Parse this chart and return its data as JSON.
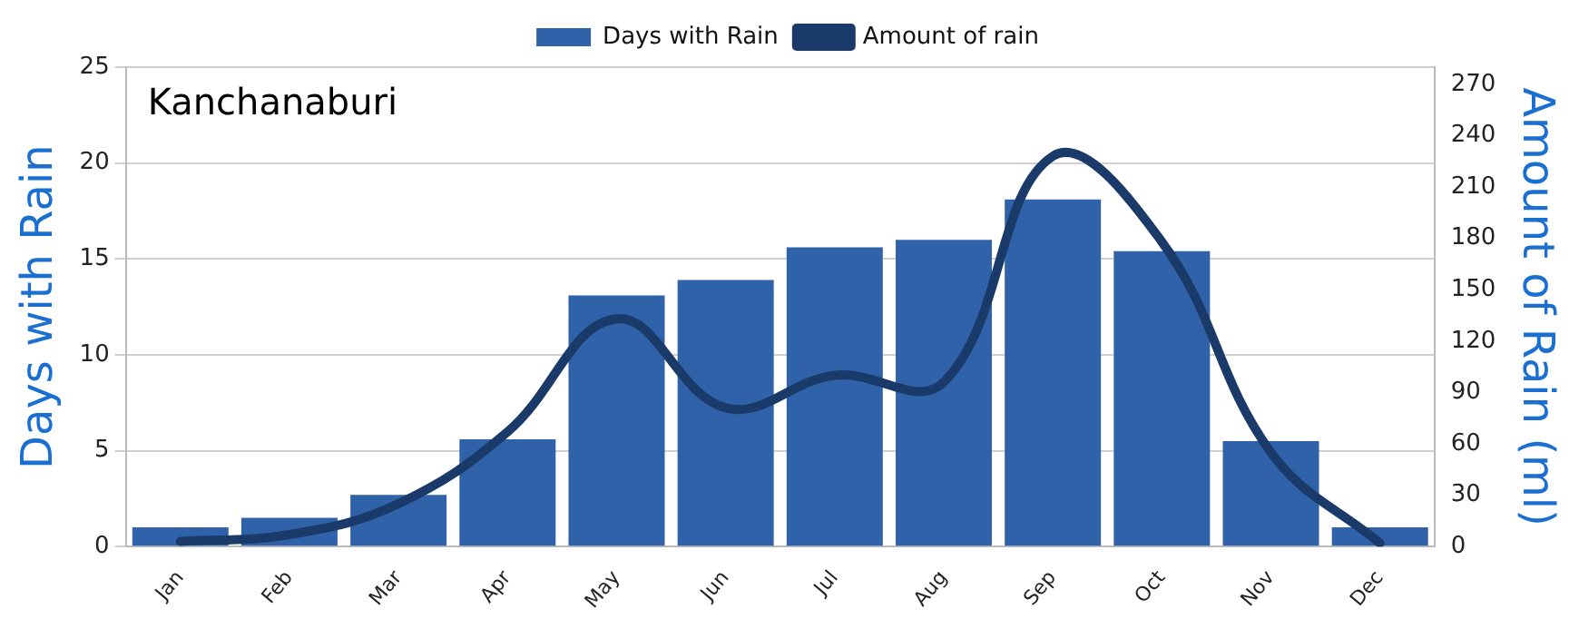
{
  "chart_data": {
    "type": "bar",
    "title": "Kanchanaburi",
    "categories": [
      "Jan",
      "Feb",
      "Mar",
      "Apr",
      "May",
      "Jun",
      "Jul",
      "Aug",
      "Sep",
      "Oct",
      "Nov",
      "Dec"
    ],
    "series": [
      {
        "name": "Days with Rain",
        "color": "#2f62a8",
        "values": [
          1,
          1.5,
          2.7,
          5.6,
          13.1,
          13.9,
          15.6,
          16,
          18.1,
          15.4,
          5.5,
          1
        ]
      },
      {
        "name": "Amount of rain",
        "type": "line",
        "axis": "y2",
        "color": "#1a3a6a",
        "values": [
          3,
          7,
          25,
          67,
          133,
          81,
          100,
          96,
          228,
          178,
          55,
          2
        ]
      }
    ],
    "ylabel": "Days with Rain",
    "y2label": "Amount of Rain (ml)",
    "ylim": [
      0,
      25
    ],
    "yticks": [
      0,
      5,
      10,
      15,
      20,
      25
    ],
    "y2lim": [
      0,
      280
    ],
    "y2ticks": [
      0,
      30,
      60,
      90,
      120,
      150,
      180,
      210,
      240,
      270
    ],
    "grid": "y",
    "legend": "top",
    "line_style": "solid",
    "marker": "none"
  }
}
